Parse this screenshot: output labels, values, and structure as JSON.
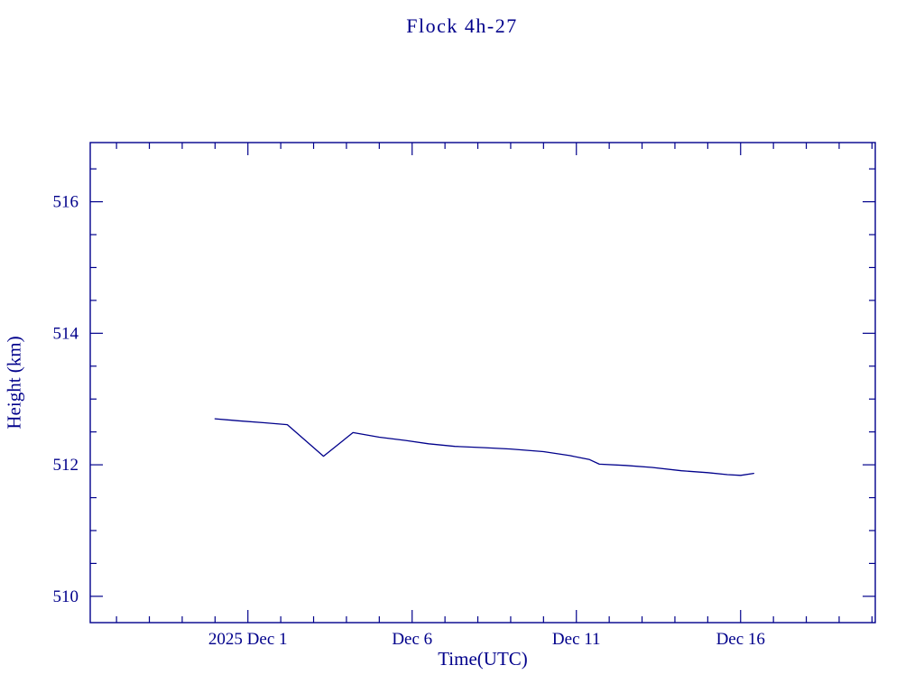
{
  "chart_data": {
    "type": "line",
    "title": "Flock 4h-27",
    "xlabel": "Time(UTC)",
    "ylabel": "Height (km)",
    "grid": false,
    "legend": "none",
    "background": "#FFFFFF",
    "frame_color": "#00008B",
    "text_color": "#00008B",
    "xlim": [
      -3.8,
      20.1
    ],
    "ylim": [
      509.6,
      516.9
    ],
    "x_minor_step": 1,
    "y_minor_step": 0.5,
    "x_major_ticks": [
      {
        "value": 1,
        "label": "2025 Dec  1"
      },
      {
        "value": 6,
        "label": "Dec  6"
      },
      {
        "value": 11,
        "label": "Dec 11"
      },
      {
        "value": 16,
        "label": "Dec 16"
      }
    ],
    "y_major_ticks": [
      {
        "value": 510,
        "label": "510"
      },
      {
        "value": 512,
        "label": "512"
      },
      {
        "value": 514,
        "label": "514"
      },
      {
        "value": 516,
        "label": "516"
      }
    ],
    "series": [
      {
        "name": "height",
        "color": "#00008B",
        "points": [
          [
            0.0,
            512.7
          ],
          [
            0.7,
            512.67
          ],
          [
            1.5,
            512.64
          ],
          [
            2.2,
            512.61
          ],
          [
            3.3,
            512.13
          ],
          [
            4.2,
            512.49
          ],
          [
            5.0,
            512.42
          ],
          [
            5.8,
            512.37
          ],
          [
            6.5,
            512.32
          ],
          [
            7.3,
            512.28
          ],
          [
            8.2,
            512.26
          ],
          [
            9.0,
            512.24
          ],
          [
            10.0,
            512.2
          ],
          [
            10.8,
            512.14
          ],
          [
            11.4,
            512.08
          ],
          [
            11.7,
            512.01
          ],
          [
            12.5,
            511.99
          ],
          [
            13.3,
            511.96
          ],
          [
            14.2,
            511.91
          ],
          [
            15.0,
            511.88
          ],
          [
            15.6,
            511.85
          ],
          [
            16.0,
            511.84
          ],
          [
            16.4,
            511.87
          ]
        ]
      }
    ]
  }
}
